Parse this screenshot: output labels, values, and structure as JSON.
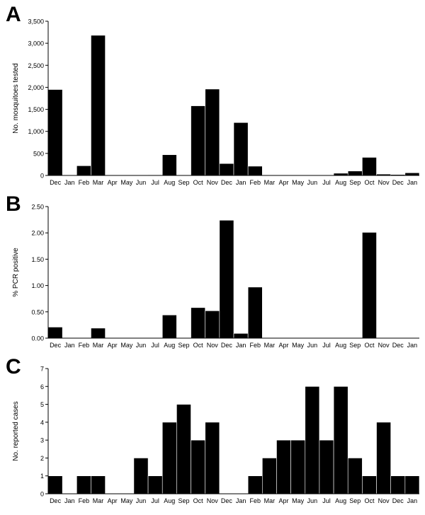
{
  "chart_data": [
    {
      "type": "bar",
      "panel_label": "A",
      "ylabel": "No. mosquitoes tested",
      "ylim": [
        0,
        3500
      ],
      "yticks": [
        0,
        500,
        1000,
        1500,
        2000,
        2500,
        3000,
        3500
      ],
      "ytick_labels": [
        "0",
        "500",
        "1,000",
        "1,500",
        "2,000",
        "2,500",
        "3,000",
        "3,500"
      ],
      "categories": [
        "Dec",
        "Jan",
        "Feb",
        "Mar",
        "Apr",
        "May",
        "Jun",
        "Jul",
        "Aug",
        "Sep",
        "Oct",
        "Nov",
        "Dec",
        "Jan",
        "Feb",
        "Mar",
        "Apr",
        "May",
        "Jun",
        "Jul",
        "Aug",
        "Sep",
        "Oct",
        "Nov",
        "Dec",
        "Jan"
      ],
      "values": [
        1950,
        0,
        220,
        3180,
        0,
        0,
        0,
        10,
        470,
        0,
        1580,
        1960,
        270,
        1200,
        210,
        0,
        0,
        0,
        0,
        0,
        50,
        100,
        410,
        30,
        20,
        60
      ],
      "grid": false,
      "bar_color": "#000000"
    },
    {
      "type": "bar",
      "panel_label": "B",
      "ylabel": "% PCR positive",
      "ylim": [
        0,
        2.5
      ],
      "yticks": [
        0,
        0.5,
        1.0,
        1.5,
        2.0,
        2.5
      ],
      "ytick_labels": [
        "0.00",
        "0.50",
        "1.00",
        "1.50",
        "2.00",
        "2.50"
      ],
      "categories": [
        "Dec",
        "Jan",
        "Feb",
        "Mar",
        "Apr",
        "May",
        "Jun",
        "Jul",
        "Aug",
        "Sep",
        "Oct",
        "Nov",
        "Dec",
        "Jan",
        "Feb",
        "Mar",
        "Apr",
        "May",
        "Jun",
        "Jul",
        "Aug",
        "Sep",
        "Oct",
        "Nov",
        "Dec",
        "Jan"
      ],
      "values": [
        0.21,
        0,
        0,
        0.19,
        0,
        0,
        0,
        0,
        0.44,
        0,
        0.58,
        0.52,
        2.24,
        0.09,
        0.97,
        0,
        0,
        0,
        0,
        0,
        0,
        0,
        2.01,
        0,
        0,
        0
      ],
      "grid": false,
      "bar_color": "#000000"
    },
    {
      "type": "bar",
      "panel_label": "C",
      "ylabel": "No. reported cases",
      "ylim": [
        0,
        7
      ],
      "yticks": [
        0,
        1,
        2,
        3,
        4,
        5,
        6,
        7
      ],
      "ytick_labels": [
        "0",
        "1",
        "2",
        "3",
        "4",
        "5",
        "6",
        "7"
      ],
      "categories": [
        "Dec",
        "Jan",
        "Feb",
        "Mar",
        "Apr",
        "May",
        "Jun",
        "Jul",
        "Aug",
        "Sep",
        "Oct",
        "Nov",
        "Dec",
        "Jan",
        "Feb",
        "Mar",
        "Apr",
        "May",
        "Jun",
        "Jul",
        "Aug",
        "Sep",
        "Oct",
        "Nov",
        "Dec",
        "Jan"
      ],
      "values": [
        1,
        0,
        1,
        1,
        0,
        0,
        2,
        1,
        4,
        5,
        3,
        4,
        0,
        0,
        1,
        2,
        3,
        3,
        6,
        3,
        6,
        2,
        1,
        4,
        1,
        1
      ],
      "grid": false,
      "bar_color": "#000000"
    }
  ]
}
